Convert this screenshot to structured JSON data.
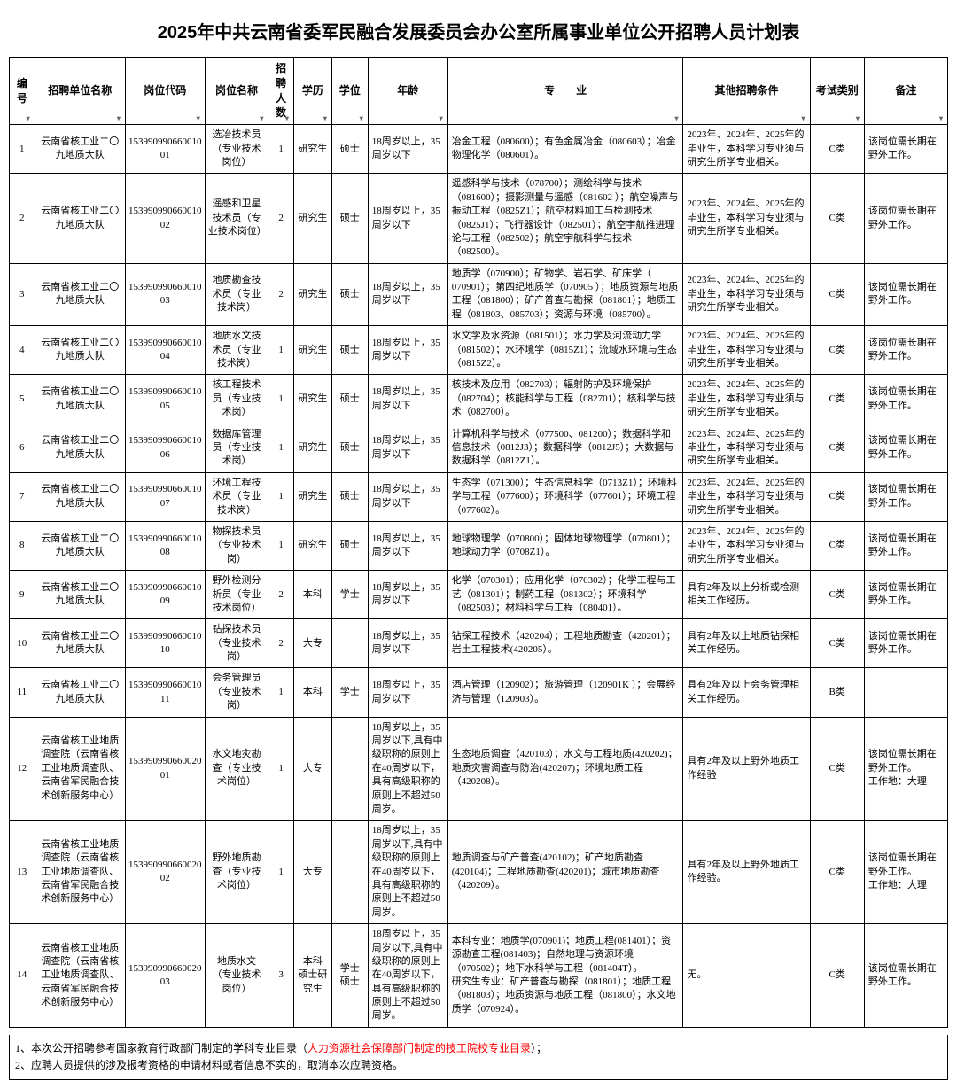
{
  "title": "2025年中共云南省委军民融合发展委员会办公室所属事业单位公开招聘人员计划表",
  "columns": [
    "编号",
    "招聘单位名称",
    "岗位代码",
    "岗位名称",
    "招聘人数",
    "学历",
    "学位",
    "年龄",
    "专　　业",
    "其他招聘条件",
    "考试类别",
    "备注"
  ],
  "rows": [
    {
      "idx": "1",
      "unit": "云南省核工业二〇九地质大队",
      "code": "15399099066001001",
      "pos": "选冶技术员（专业技术岗位）",
      "num": "1",
      "edu": "研究生",
      "deg": "硕士",
      "age": "18周岁以上，35周岁以下",
      "major": "冶金工程（080600）；有色金属冶金（080603）；冶金物理化学（080601）。",
      "other": "2023年、2024年、2025年的毕业生，本科学习专业须与研究生所学专业相关。",
      "exam": "C类",
      "note": "该岗位需长期在野外工作。"
    },
    {
      "idx": "2",
      "unit": "云南省核工业二〇九地质大队",
      "code": "15399099066001002",
      "pos": "遥感和卫星技术员（专业技术岗位）",
      "num": "2",
      "edu": "研究生",
      "deg": "硕士",
      "age": "18周岁以上，35周岁以下",
      "major": "遥感科学与技术（078700）；测绘科学与技术（081600）；摄影测量与遥感（081602 ）；航空噪声与振动工程（0825Z1）；航空材料加工与检测技术（0825J1）；飞行器设计（082501）；航空宇航推进理论与工程（082502）；航空宇航科学与技术（082500）。",
      "other": "2023年、2024年、2025年的毕业生，本科学习专业须与研究生所学专业相关。",
      "exam": "C类",
      "note": "该岗位需长期在野外工作。"
    },
    {
      "idx": "3",
      "unit": "云南省核工业二〇九地质大队",
      "code": "15399099066001003",
      "pos": "地质勘查技术员（专业技术岗）",
      "num": "2",
      "edu": "研究生",
      "deg": "硕士",
      "age": "18周岁以上，35周岁以下",
      "major": "地质学（070900）；矿物学、岩石学、矿床学（ 070901）；第四纪地质学（070905 ）；地质资源与地质工程（081800）；矿产普查与勘探（081801）；地质工程（081803、085703）；资源与环境（085700）。",
      "other": "2023年、2024年、2025年的毕业生，本科学习专业须与研究生所学专业相关。",
      "exam": "C类",
      "note": "该岗位需长期在野外工作。"
    },
    {
      "idx": "4",
      "unit": "云南省核工业二〇九地质大队",
      "code": "15399099066001004",
      "pos": "地质水文技术员（专业技术岗）",
      "num": "1",
      "edu": "研究生",
      "deg": "硕士",
      "age": "18周岁以上，35周岁以下",
      "major": "水文学及水资源（081501）；水力学及河流动力学（081502）；水环境学（0815Z1）；流域水环境与生态（0815Z2）。",
      "other": "2023年、2024年、2025年的毕业生，本科学习专业须与研究生所学专业相关。",
      "exam": "C类",
      "note": "该岗位需长期在野外工作。"
    },
    {
      "idx": "5",
      "unit": "云南省核工业二〇九地质大队",
      "code": "15399099066001005",
      "pos": "核工程技术员（专业技术岗）",
      "num": "1",
      "edu": "研究生",
      "deg": "硕士",
      "age": "18周岁以上，35周岁以下",
      "major": "核技术及应用（082703）；辐射防护及环境保护（082704）；核能科学与工程（082701）；核科学与技术（082700）。",
      "other": "2023年、2024年、2025年的毕业生，本科学习专业须与研究生所学专业相关。",
      "exam": "C类",
      "note": "该岗位需长期在野外工作。"
    },
    {
      "idx": "6",
      "unit": "云南省核工业二〇九地质大队",
      "code": "15399099066001006",
      "pos": "数据库管理员（专业技术岗）",
      "num": "1",
      "edu": "研究生",
      "deg": "硕士",
      "age": "18周岁以上，35周岁以下",
      "major": "计算机科学与技术（077500、081200）；数据科学和信息技术（0812J3）；数据科学（0812J5）；大数据与数据科学（0812Z1）。",
      "other": "2023年、2024年、2025年的毕业生，本科学习专业须与研究生所学专业相关。",
      "exam": "C类",
      "note": "该岗位需长期在野外工作。"
    },
    {
      "idx": "7",
      "unit": "云南省核工业二〇九地质大队",
      "code": "15399099066001007",
      "pos": "环境工程技术员（专业技术岗）",
      "num": "1",
      "edu": "研究生",
      "deg": "硕士",
      "age": "18周岁以上，35周岁以下",
      "major": "生态学（071300）；生态信息科学（0713Z1）；环境科学与工程（077600）；环境科学（077601）；环境工程（077602）。",
      "other": "2023年、2024年、2025年的毕业生，本科学习专业须与研究生所学专业相关。",
      "exam": "C类",
      "note": "该岗位需长期在野外工作。"
    },
    {
      "idx": "8",
      "unit": "云南省核工业二〇九地质大队",
      "code": "15399099066001008",
      "pos": "物探技术员（专业技术岗）",
      "num": "1",
      "edu": "研究生",
      "deg": "硕士",
      "age": "18周岁以上，35周岁以下",
      "major": "地球物理学（070800）；固体地球物理学（070801）；地球动力学（0708Z1）。",
      "other": "2023年、2024年、2025年的毕业生，本科学习专业须与研究生所学专业相关。",
      "exam": "C类",
      "note": "该岗位需长期在野外工作。"
    },
    {
      "idx": "9",
      "unit": "云南省核工业二〇九地质大队",
      "code": "15399099066001009",
      "pos": "野外检测分析员（专业技术岗位）",
      "num": "2",
      "edu": "本科",
      "deg": "学士",
      "age": "18周岁以上，35周岁以下",
      "major": "化学（070301）；应用化学（070302）；化学工程与工艺（081301）；制药工程（081302）；环境科学（082503）；材料科学与工程（080401）。",
      "other": "具有2年及以上分析或检测相关工作经历。",
      "exam": "C类",
      "note": "该岗位需长期在野外工作。"
    },
    {
      "idx": "10",
      "unit": "云南省核工业二〇九地质大队",
      "code": "15399099066001010",
      "pos": "钻探技术员（专业技术岗）",
      "num": "2",
      "edu": "大专",
      "deg": "",
      "age": "18周岁以上，35周岁以下",
      "major": "钻探工程技术（420204）；工程地质勘查（420201）；岩土工程技术(420205）。",
      "other": "具有2年及以上地质钻探相关工作经历。",
      "exam": "C类",
      "note": "该岗位需长期在野外工作。"
    },
    {
      "idx": "11",
      "unit": "云南省核工业二〇九地质大队",
      "code": "15399099066001011",
      "pos": "会务管理员（专业技术岗）",
      "num": "1",
      "edu": "本科",
      "deg": "学士",
      "age": "18周岁以上，35周岁以下",
      "major": "酒店管理（120902）；旅游管理（120901K ）；会展经济与管理（120903）。",
      "other": "具有2年及以上会务管理相关工作经历。",
      "exam": "B类",
      "note": ""
    },
    {
      "idx": "12",
      "unit": "云南省核工业地质调查院（云南省核工业地质调查队、云南省军民融合技术创新服务中心）",
      "code": "15399099066002001",
      "pos": "水文地灾勘查（专业技术岗位）",
      "num": "1",
      "edu": "大专",
      "deg": "",
      "age": "18周岁以上，35周岁以下,具有中级职称的原则上在40周岁以下，具有高级职称的原则上不超过50周岁。",
      "major": "生态地质调查（420103）；水文与工程地质(420202)；地质灾害调查与防治(420207)；环境地质工程（420208）。",
      "other": "具有2年及以上野外地质工作经验",
      "exam": "C类",
      "note": "该岗位需长期在野外工作。\n工作地：大理"
    },
    {
      "idx": "13",
      "unit": "云南省核工业地质调查院（云南省核工业地质调查队、云南省军民融合技术创新服务中心）",
      "code": "15399099066002002",
      "pos": "野外地质勘查（专业技术岗位）",
      "num": "1",
      "edu": "大专",
      "deg": "",
      "age": "18周岁以上，35周岁以下,具有中级职称的原则上在40周岁以下，具有高级职称的原则上不超过50周岁。",
      "major": "地质调查与矿产普查(420102)；矿产地质勘查(420104)；工程地质勘查(420201)；城市地质勘查（420209）。",
      "other": "具有2年及以上野外地质工作经验。",
      "exam": "C类",
      "note": "该岗位需长期在野外工作。\n工作地：大理"
    },
    {
      "idx": "14",
      "unit": "云南省核工业地质调查院（云南省核工业地质调查队、云南省军民融合技术创新服务中心）",
      "code": "15399099066002003",
      "pos": "地质水文（专业技术岗位）",
      "num": "3",
      "edu": "本科\n硕士研究生",
      "deg": "学士\n硕士",
      "age": "18周岁以上，35周岁以下,具有中级职称的原则上在40周岁以下，具有高级职称的原则上不超过50周岁。",
      "major": "本科专业：地质学(070901)；地质工程(081401）；资源勘查工程(081403)；自然地理与资源环境（070502）；地下水科学与工程（081404T）。\n研究生专业：矿产普查与勘探（081801）；地质工程（081803）；地质资源与地质工程（081800）；水文地质学（070924）。",
      "other": "无。",
      "exam": "C类",
      "note": "该岗位需长期在野外工作。"
    }
  ],
  "footer": {
    "line1_pre": "1、本次公开招聘参考国家教育行政部门制定的学科专业目录（",
    "line1_hl": "人力资源社会保障部门制定的技工院校专业目录",
    "line1_post": "）；",
    "line2": "2、应聘人员提供的涉及报考资格的申请材料或者信息不实的，取消本次应聘资格。"
  }
}
